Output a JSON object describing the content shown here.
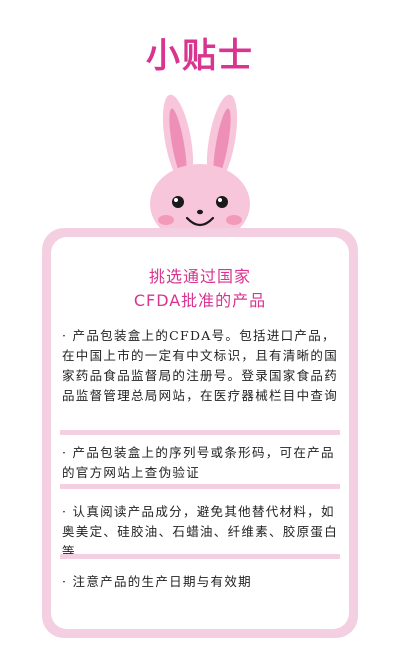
{
  "title": "小贴士",
  "card": {
    "heading_line1": "挑选通过国家",
    "heading_line2": "CFDA批准的产品",
    "tips": [
      "· 产品包装盒上的CFDA号。包括进口产品，在中国上市的一定有中文标识，且有清晰的国家药品食品监督局的注册号。登录国家食品药品监督管理总局网站，在医疗器械栏目中查询",
      "· 产品包装盒上的序列号或条形码，可在产品的官方网站上查伪验证",
      "· 认真阅读产品成分，避免其他替代材料，如奥美定、硅胶油、石蜡油、纤维素、胶原蛋白等",
      "· 注意产品的生产日期与有效期"
    ]
  },
  "colors": {
    "accent": "#d9348f",
    "card_border": "#f4cfe1",
    "rabbit_pink": "#f7c6db",
    "ear_inner": "#ee8fb7",
    "cheek": "#f39ab8"
  },
  "icons": {
    "mascot": "bunny-mascot-icon"
  }
}
